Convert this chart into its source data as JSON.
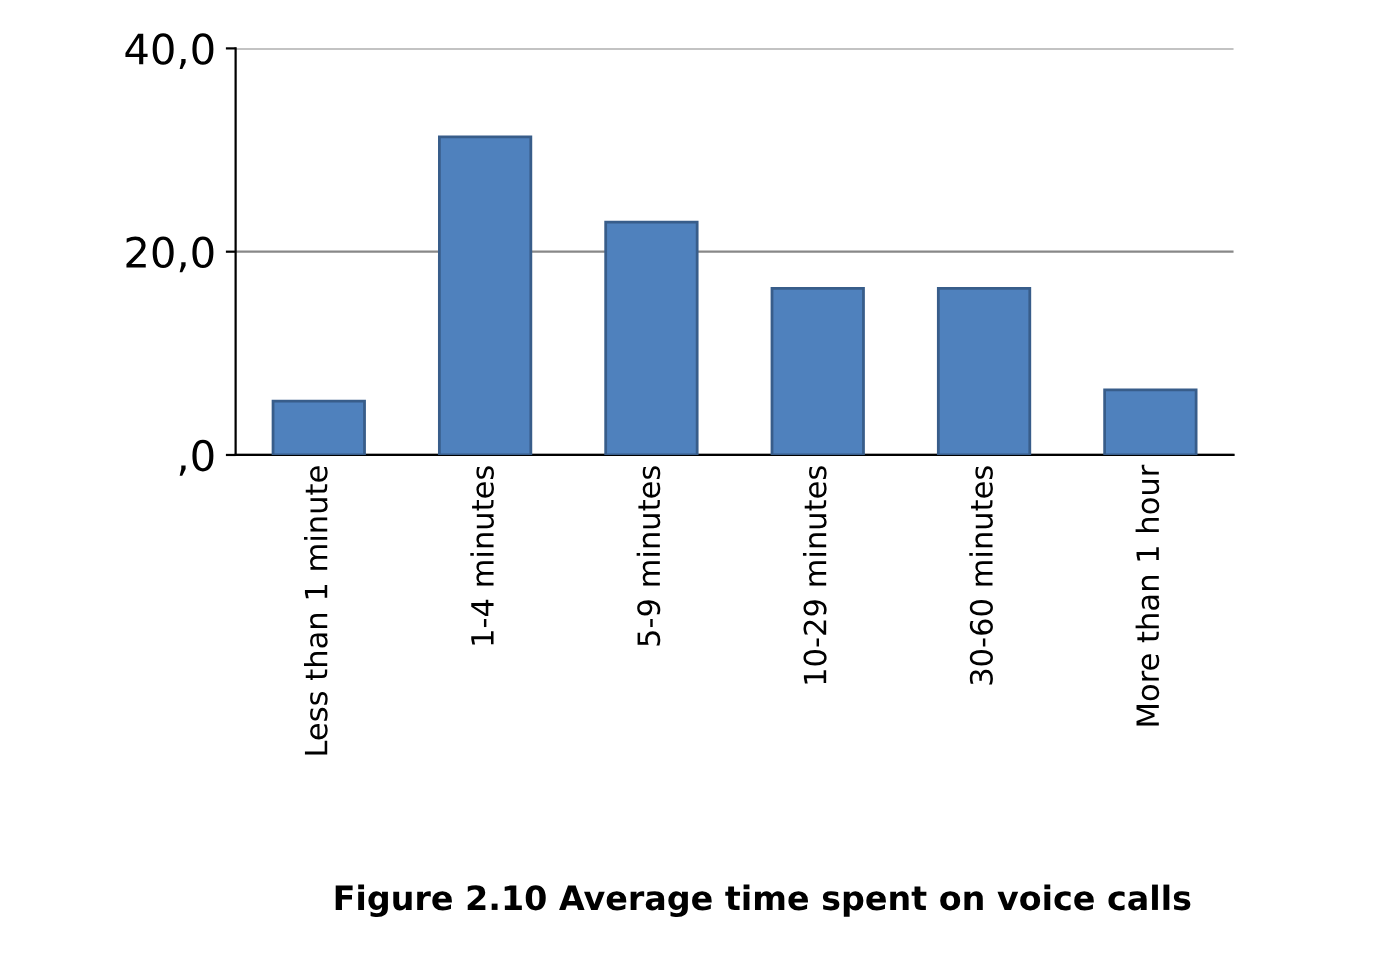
{
  "chart_data": {
    "type": "bar",
    "title": "Figure 2.10 Average time spent on voice calls",
    "categories": [
      "Less than 1 minute",
      "1-4 minutes",
      "5-9 minutes",
      "10-29 minutes",
      "30-60 minutes",
      "More than 1 hour"
    ],
    "values": [
      5.3,
      31.3,
      22.9,
      16.4,
      16.4,
      6.4
    ],
    "color": "#4f81bd",
    "ylim": [
      0,
      40
    ],
    "yticks": [
      {
        "value": 0,
        "label": ",0"
      },
      {
        "value": 20,
        "label": "20,0"
      },
      {
        "value": 40,
        "label": "40,0"
      }
    ],
    "grid": "y"
  }
}
